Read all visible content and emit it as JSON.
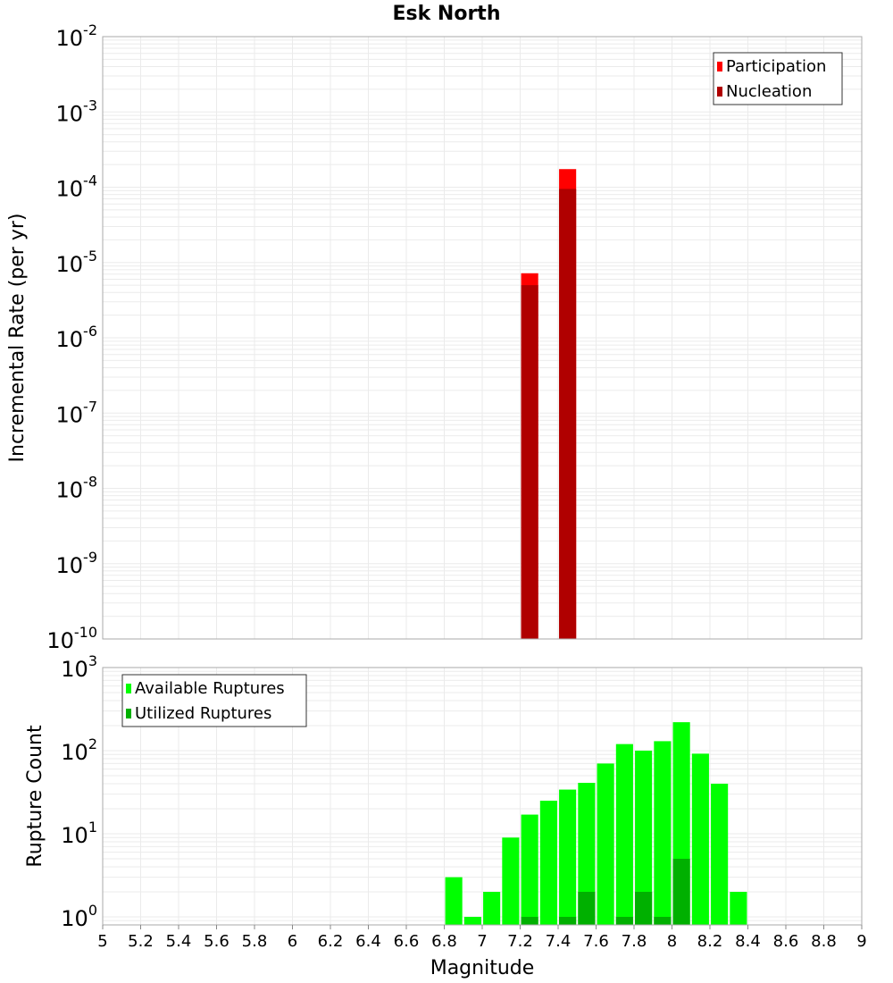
{
  "chart_data": [
    {
      "type": "bar",
      "title": "Esk North",
      "xlabel": "Magnitude",
      "ylabel": "Incremental Rate (per yr)",
      "yscale": "log",
      "ylim": [
        1e-10,
        0.01
      ],
      "xlim": [
        5,
        9
      ],
      "bin_width": 0.1,
      "series": [
        {
          "name": "Participation",
          "color": "#ff0000",
          "x": [
            7.25,
            7.45
          ],
          "values": [
            7.2e-06,
            0.000174
          ]
        },
        {
          "name": "Nucleation",
          "color": "#b00000",
          "x": [
            7.25,
            7.45
          ],
          "values": [
            5e-06,
            9.5e-05
          ]
        }
      ],
      "ytick_exponents": [
        -2,
        -3,
        -4,
        -5,
        -6,
        -7,
        -8,
        -9,
        -10
      ],
      "legend": "top-right",
      "grid": true
    },
    {
      "type": "bar",
      "xlabel": "Magnitude",
      "ylabel": "Rupture Count",
      "yscale": "log",
      "ylim": [
        0.8,
        1000
      ],
      "xlim": [
        5,
        9
      ],
      "bin_width": 0.1,
      "x": [
        6.85,
        6.95,
        7.05,
        7.15,
        7.25,
        7.35,
        7.45,
        7.55,
        7.65,
        7.75,
        7.85,
        7.95,
        8.05,
        8.15,
        8.25,
        8.35
      ],
      "series": [
        {
          "name": "Available Ruptures",
          "color": "#00ff00",
          "values": [
            3,
            1,
            2,
            9,
            17,
            25,
            34,
            41,
            70,
            120,
            100,
            130,
            220,
            92,
            40,
            2
          ]
        },
        {
          "name": "Utilized Ruptures",
          "color": "#00b000",
          "values": [
            0,
            0,
            0,
            0,
            1,
            0,
            1,
            2,
            0,
            1,
            2,
            1,
            5,
            0,
            0,
            0
          ]
        }
      ],
      "ytick_exponents": [
        3,
        2,
        1,
        0
      ],
      "xticks": [
        "5",
        "5.2",
        "5.4",
        "5.6",
        "5.8",
        "6",
        "6.2",
        "6.4",
        "6.6",
        "6.8",
        "7",
        "7.2",
        "7.4",
        "7.6",
        "7.8",
        "8",
        "8.2",
        "8.4",
        "8.6",
        "8.8",
        "9"
      ],
      "legend": "top-left",
      "grid": true
    }
  ]
}
